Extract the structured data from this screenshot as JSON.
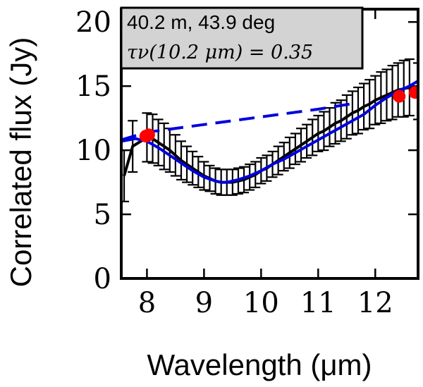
{
  "chart_data": {
    "type": "line",
    "xlabel": "Wavelength (μm)",
    "ylabel": "Correlated flux (Jy)",
    "xlim": [
      7.55,
      12.75
    ],
    "ylim": [
      0,
      21
    ],
    "x_ticks": [
      8,
      9,
      10,
      11,
      12
    ],
    "y_ticks": [
      0,
      5,
      10,
      15,
      20
    ],
    "grid": false,
    "legend": "none",
    "annotation": {
      "line1": "40.2 m, 43.9 deg",
      "line2": "τν(10.2 μm) = 0.35"
    },
    "colors": {
      "measured": "#000000",
      "model_fit": "#0000dd",
      "continuum": "#0000dd",
      "photometry_points": "#ff0000",
      "annotation_box": "#d3d3d3"
    },
    "series": [
      {
        "style": "black-solid-with-errorbars",
        "x": [
          7.6,
          7.75,
          8.0,
          8.1,
          8.2,
          8.3,
          8.4,
          8.5,
          8.6,
          8.7,
          8.8,
          8.9,
          9.0,
          9.1,
          9.2,
          9.3,
          9.4,
          9.5,
          9.6,
          9.7,
          9.8,
          9.9,
          10.0,
          10.1,
          10.2,
          10.3,
          10.4,
          10.5,
          10.6,
          10.7,
          10.8,
          10.9,
          11.0,
          11.1,
          11.2,
          11.3,
          11.4,
          11.5,
          11.6,
          11.7,
          11.8,
          11.9,
          12.0,
          12.1,
          12.2,
          12.3,
          12.4,
          12.5,
          12.6,
          12.75
        ],
        "y": [
          8.0,
          10.3,
          11.0,
          10.9,
          10.6,
          10.3,
          10.0,
          9.6,
          9.2,
          8.9,
          8.6,
          8.3,
          8.0,
          7.8,
          7.6,
          7.5,
          7.5,
          7.5,
          7.6,
          7.7,
          7.9,
          8.1,
          8.4,
          8.6,
          8.9,
          9.2,
          9.5,
          9.8,
          10.1,
          10.4,
          10.7,
          11.0,
          11.3,
          11.5,
          11.8,
          12.1,
          12.3,
          12.6,
          12.9,
          13.1,
          13.4,
          13.6,
          13.9,
          14.1,
          14.3,
          14.5,
          14.7,
          14.8,
          14.9,
          14.6
        ],
        "yerr": [
          2.0,
          2.0,
          1.9,
          1.9,
          1.8,
          1.8,
          1.7,
          1.6,
          1.5,
          1.4,
          1.3,
          1.2,
          1.1,
          1.0,
          1.0,
          1.0,
          1.0,
          1.0,
          1.0,
          1.0,
          1.0,
          1.0,
          1.0,
          1.0,
          1.0,
          1.1,
          1.1,
          1.2,
          1.2,
          1.3,
          1.3,
          1.4,
          1.4,
          1.5,
          1.5,
          1.6,
          1.6,
          1.7,
          1.7,
          1.8,
          1.8,
          1.9,
          1.9,
          2.0,
          2.0,
          2.1,
          2.1,
          2.2,
          2.2,
          2.2
        ]
      },
      {
        "style": "blue-solid",
        "x": [
          7.55,
          7.8,
          8.0,
          8.2,
          8.4,
          8.6,
          8.8,
          9.0,
          9.2,
          9.3,
          9.4,
          9.6,
          9.8,
          10.0,
          10.2,
          10.4,
          10.6,
          10.8,
          11.0,
          11.2,
          11.4,
          11.6,
          11.8,
          12.0,
          12.2,
          12.4,
          12.6,
          12.75
        ],
        "y": [
          10.7,
          10.9,
          10.7,
          10.2,
          9.6,
          9.0,
          8.4,
          7.9,
          7.6,
          7.5,
          7.5,
          7.7,
          8.0,
          8.4,
          8.9,
          9.3,
          9.8,
          10.3,
          10.8,
          11.3,
          11.8,
          12.3,
          12.8,
          13.5,
          14.1,
          14.6,
          15.0,
          15.4
        ]
      },
      {
        "style": "blue-dashed",
        "x": [
          7.55,
          8.0,
          9.0,
          10.0,
          11.0,
          11.7
        ],
        "y": [
          10.8,
          11.4,
          12.0,
          12.6,
          13.2,
          13.7
        ]
      },
      {
        "style": "red-points",
        "x": [
          7.98,
          8.03,
          12.42,
          12.7
        ],
        "y": [
          11.1,
          11.2,
          14.2,
          14.5
        ]
      }
    ]
  }
}
